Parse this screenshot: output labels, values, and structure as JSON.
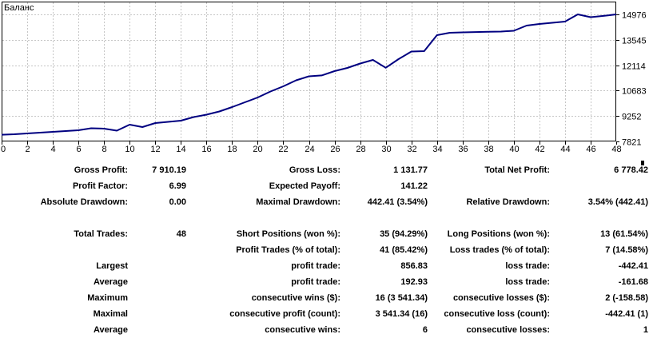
{
  "chart_data": {
    "type": "line",
    "title": "Баланс",
    "line_color": "#000080",
    "grid_color": "#c6c6c6",
    "grid": true,
    "xlim": [
      0,
      48
    ],
    "ylim": [
      7821,
      14976
    ],
    "x_ticks": [
      0,
      2,
      4,
      6,
      8,
      10,
      12,
      14,
      16,
      18,
      20,
      22,
      24,
      26,
      28,
      30,
      32,
      34,
      36,
      38,
      40,
      42,
      44,
      46,
      48
    ],
    "x_tick_labels": [
      "0",
      "2",
      "4",
      "6",
      "8",
      "10",
      "12",
      "14",
      "16",
      "18",
      "20",
      "22",
      "24",
      "26",
      "28",
      "30",
      "32",
      "34",
      "36",
      "38",
      "40",
      "42",
      "44",
      "46",
      "48"
    ],
    "y_ticks": [
      7821,
      9252,
      10683,
      12114,
      13545,
      14976
    ],
    "y_tick_labels": [
      "7821",
      "9252",
      "10683",
      "12114",
      "13545",
      "14976"
    ],
    "series": [
      {
        "name": "Баланс",
        "values": [
          8198,
          8225,
          8271,
          8316,
          8361,
          8406,
          8451,
          8564,
          8541,
          8428,
          8766,
          8631,
          8856,
          8924,
          8991,
          9194,
          9329,
          9509,
          9756,
          10026,
          10296,
          10634,
          10926,
          11264,
          11489,
          11540,
          11781,
          11961,
          12209,
          12411,
          11969,
          12456,
          12883,
          12906,
          13806,
          13941,
          13964,
          13980,
          13995,
          14009,
          14054,
          14346,
          14436,
          14504,
          14571,
          14976,
          14817,
          14890,
          14976.42
        ]
      }
    ]
  },
  "stats": {
    "rows": [
      {
        "cells": [
          "Gross Profit:",
          "7 910.19",
          "Gross Loss:",
          "1 131.77",
          "Total Net Profit:",
          "6 778.42"
        ]
      },
      {
        "cells": [
          "Profit Factor:",
          "6.99",
          "Expected Payoff:",
          "141.22",
          "",
          ""
        ]
      },
      {
        "cells": [
          "Absolute Drawdown:",
          "0.00",
          "Maximal Drawdown:",
          "442.41 (3.54%)",
          "Relative Drawdown:",
          "3.54% (442.41)"
        ]
      },
      {
        "cells": [
          "",
          "",
          "",
          "",
          "",
          ""
        ]
      },
      {
        "cells": [
          "Total Trades:",
          "48",
          "Short Positions (won %):",
          "35 (94.29%)",
          "Long Positions (won %):",
          "13 (61.54%)"
        ]
      },
      {
        "cells": [
          "",
          "",
          "Profit Trades (% of total):",
          "41 (85.42%)",
          "Loss trades (% of total):",
          "7 (14.58%)"
        ]
      },
      {
        "cells": [
          "Largest",
          "",
          "profit trade:",
          "856.83",
          "loss trade:",
          "-442.41"
        ]
      },
      {
        "cells": [
          "Average",
          "",
          "profit trade:",
          "192.93",
          "loss trade:",
          "-161.68"
        ]
      },
      {
        "cells": [
          "Maximum",
          "",
          "consecutive wins ($):",
          "16 (3 541.34)",
          "consecutive losses ($):",
          "2 (-158.58)"
        ]
      },
      {
        "cells": [
          "Maximal",
          "",
          "consecutive profit (count):",
          "3 541.34 (16)",
          "consecutive loss (count):",
          "-442.41 (1)"
        ]
      },
      {
        "cells": [
          "Average",
          "",
          "consecutive wins:",
          "6",
          "consecutive losses:",
          "1"
        ]
      }
    ]
  }
}
